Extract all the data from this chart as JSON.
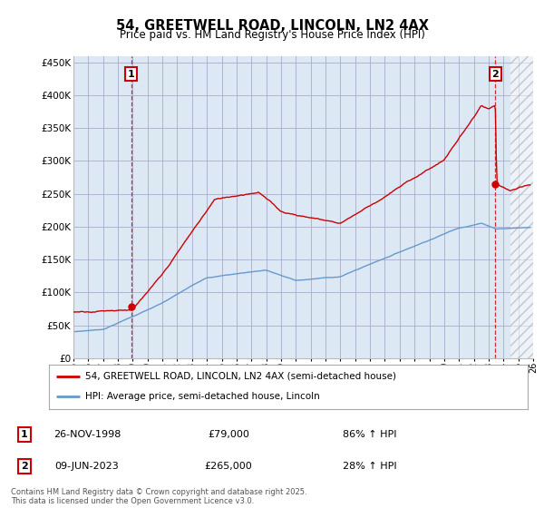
{
  "title": "54, GREETWELL ROAD, LINCOLN, LN2 4AX",
  "subtitle": "Price paid vs. HM Land Registry's House Price Index (HPI)",
  "yticks": [
    0,
    50000,
    100000,
    150000,
    200000,
    250000,
    300000,
    350000,
    400000,
    450000
  ],
  "ytick_labels": [
    "£0",
    "£50K",
    "£100K",
    "£150K",
    "£200K",
    "£250K",
    "£300K",
    "£350K",
    "£400K",
    "£450K"
  ],
  "xlim_start": 1995,
  "xlim_end": 2026,
  "ylim": [
    0,
    460000
  ],
  "grid_color": "#aaaacc",
  "bg_color": "#ffffff",
  "chart_bg_color": "#dde8f5",
  "property_color": "#cc0000",
  "hpi_color": "#6699cc",
  "transaction1_date": "26-NOV-1998",
  "transaction1_price": 79000,
  "transaction1_hpi": "86% ↑ HPI",
  "transaction2_date": "09-JUN-2023",
  "transaction2_price": 265000,
  "transaction2_hpi": "28% ↑ HPI",
  "legend_property": "54, GREETWELL ROAD, LINCOLN, LN2 4AX (semi-detached house)",
  "legend_hpi": "HPI: Average price, semi-detached house, Lincoln",
  "footer": "Contains HM Land Registry data © Crown copyright and database right 2025.\nThis data is licensed under the Open Government Licence v3.0.",
  "marker1_x": 1998.9,
  "marker1_y": 79000,
  "marker2_x": 2023.45,
  "marker2_y": 265000
}
